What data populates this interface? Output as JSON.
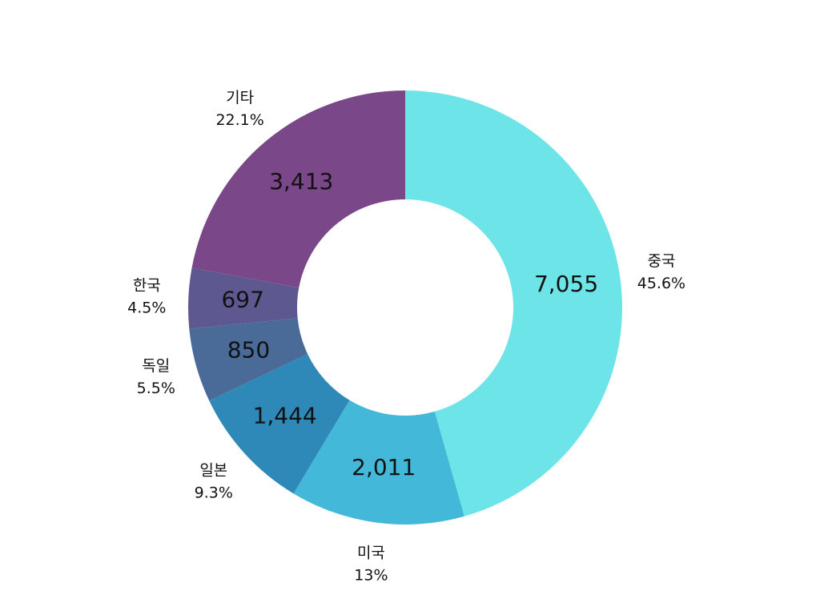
{
  "chart_data": {
    "type": "donut",
    "categories": [
      "중국",
      "미국",
      "일본",
      "독일",
      "한국",
      "기타"
    ],
    "values": [
      7055,
      2011,
      1444,
      850,
      697,
      3413
    ],
    "value_labels": [
      "7,055",
      "2,011",
      "1,444",
      "850",
      "697",
      "3,413"
    ],
    "percent_labels": [
      "45.6%",
      "13%",
      "9.3%",
      "5.5%",
      "4.5%",
      "22.1%"
    ],
    "colors": [
      "#6ce4e8",
      "#44b8d8",
      "#2e88b8",
      "#4a6a98",
      "#5e5890",
      "#7a4788"
    ]
  }
}
